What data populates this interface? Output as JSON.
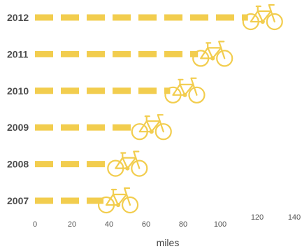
{
  "chart_data": {
    "type": "bar",
    "style": "dashed-bars-with-bicycle-icons",
    "orientation": "horizontal",
    "categories": [
      "2012",
      "2011",
      "2010",
      "2009",
      "2008",
      "2007"
    ],
    "values": [
      115,
      88,
      73,
      55,
      42,
      37
    ],
    "xlabel": "miles",
    "ylabel": "",
    "xlim": [
      0,
      140
    ],
    "xticks": [
      "0",
      "20",
      "40",
      "60",
      "80",
      "100",
      "120",
      "140"
    ],
    "grid": false,
    "legend": "none",
    "bar_color": "#F2CD4E",
    "icon": "bicycle-icon"
  }
}
